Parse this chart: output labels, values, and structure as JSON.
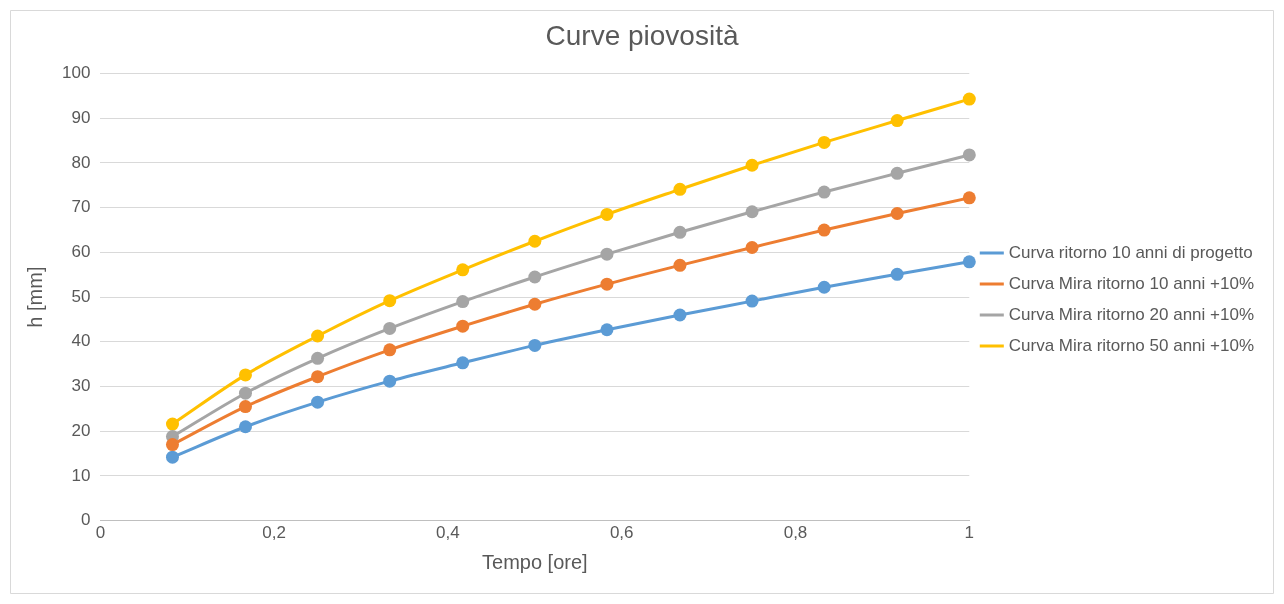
{
  "chart_data": {
    "type": "line",
    "title": "Curve piovosità",
    "xlabel": "Tempo [ore]",
    "ylabel": "h [mm]",
    "x": [
      0.083,
      0.167,
      0.25,
      0.333,
      0.417,
      0.5,
      0.583,
      0.667,
      0.75,
      0.833,
      0.917,
      1
    ],
    "series": [
      {
        "name": "Curva ritorno 10 anni di progetto",
        "color": "#5b9bd5",
        "values": [
          14.2,
          21,
          26.5,
          31.2,
          35.3,
          39.2,
          42.7,
          46,
          49.1,
          52.2,
          55.1,
          57.9
        ]
      },
      {
        "name": "Curva Mira ritorno 10 anni +10%",
        "color": "#ed7d31",
        "values": [
          17,
          25.5,
          32.2,
          38.2,
          43.5,
          48.4,
          52.9,
          57.1,
          61.1,
          65,
          68.7,
          72.2
        ]
      },
      {
        "name": "Curva Mira ritorno 20 anni +10%",
        "color": "#a5a5a5",
        "values": [
          18.8,
          28.5,
          36.3,
          43,
          49,
          54.5,
          59.6,
          64.5,
          69.1,
          73.5,
          77.7,
          81.8
        ]
      },
      {
        "name": "Curva Mira ritorno 50 anni +10%",
        "color": "#ffc000",
        "values": [
          21.6,
          32.6,
          41.3,
          49.2,
          56.1,
          62.5,
          68.5,
          74.1,
          79.5,
          84.6,
          89.5,
          94.3
        ]
      }
    ],
    "xlim": [
      0,
      1
    ],
    "xticks": [
      0,
      {
        "value": 0.2,
        "label": "0,2"
      },
      {
        "value": 0.4,
        "label": "0,4"
      },
      {
        "value": 0.6,
        "label": "0,6"
      },
      {
        "value": 0.8,
        "label": "0,8"
      },
      1
    ],
    "ylim": [
      0,
      100
    ],
    "yticks": [
      0,
      10,
      20,
      30,
      40,
      50,
      60,
      70,
      80,
      90,
      100
    ],
    "grid": "y",
    "legend": "right",
    "marker": "circle",
    "line_style": "solid"
  }
}
